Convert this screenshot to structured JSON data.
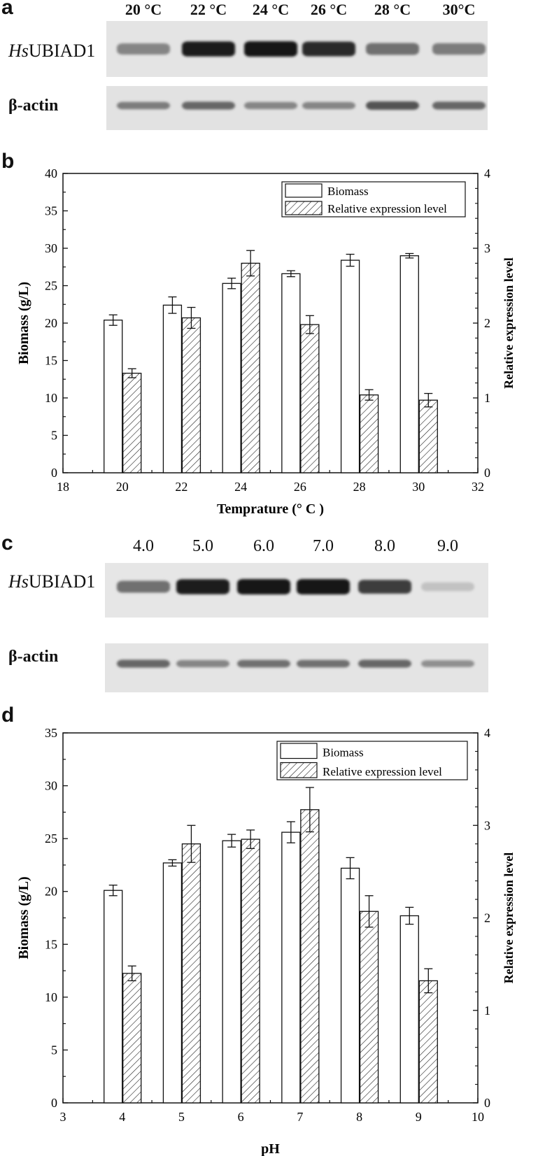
{
  "panel_a": {
    "letter": "a",
    "lanes": [
      "20 °C",
      "22 °C",
      "24 °C",
      "26 °C",
      "28 °C",
      "30°C"
    ],
    "row1_label_italic": "Hs",
    "row1_label_rest": "UBIAD1",
    "row2_label": "β-actin",
    "band_intensity_row1": [
      0.45,
      0.95,
      1.0,
      0.9,
      0.55,
      0.5
    ],
    "band_intensity_row2": [
      0.5,
      0.6,
      0.45,
      0.45,
      0.7,
      0.6
    ]
  },
  "panel_c": {
    "letter": "c",
    "lanes": [
      "4.0",
      "5.0",
      "6.0",
      "7.0",
      "8.0",
      "9.0"
    ],
    "row1_label_italic": "Hs",
    "row1_label_rest": "UBIAD1",
    "row2_label": "β-actin",
    "band_intensity_row1": [
      0.55,
      0.95,
      1.0,
      1.0,
      0.8,
      0.15
    ],
    "band_intensity_row2": [
      0.6,
      0.45,
      0.55,
      0.55,
      0.6,
      0.4
    ]
  },
  "chart_data": [
    {
      "panel": "b",
      "type": "bar",
      "xlabel": "Temprature (° C )",
      "ylabel": "Biomass (g/L)",
      "y2label": "Relative expression level",
      "xlim": [
        18,
        32
      ],
      "xticks": [
        18,
        20,
        22,
        24,
        26,
        28,
        30,
        32
      ],
      "ylim": [
        0,
        40
      ],
      "yticks": [
        0,
        5,
        10,
        15,
        20,
        25,
        30,
        35,
        40
      ],
      "y2lim": [
        0,
        4
      ],
      "y2ticks": [
        0,
        1,
        2,
        3,
        4
      ],
      "x": [
        20,
        22,
        24,
        26,
        28,
        30
      ],
      "legend_position": "top-right",
      "series": [
        {
          "name": "Biomass",
          "axis": "left",
          "values": [
            20.4,
            22.4,
            25.3,
            26.6,
            28.4,
            29.0
          ],
          "errors": [
            0.7,
            1.1,
            0.7,
            0.4,
            0.8,
            0.3
          ]
        },
        {
          "name": "Relative expression level",
          "axis": "right",
          "values": [
            1.33,
            2.07,
            2.8,
            1.98,
            1.04,
            0.97
          ],
          "errors": [
            0.06,
            0.14,
            0.17,
            0.12,
            0.07,
            0.09
          ]
        }
      ]
    },
    {
      "panel": "d",
      "type": "bar",
      "xlabel": "pH",
      "ylabel": "Biomass (g/L)",
      "y2label": "Relative expression level",
      "xlim": [
        3,
        10
      ],
      "xticks": [
        3,
        4,
        5,
        6,
        7,
        8,
        9,
        10
      ],
      "ylim": [
        0,
        35
      ],
      "yticks": [
        0,
        5,
        10,
        15,
        20,
        25,
        30,
        35
      ],
      "y2lim": [
        0,
        4
      ],
      "y2ticks": [
        0,
        1,
        2,
        3,
        4
      ],
      "x": [
        4,
        5,
        6,
        7,
        8,
        9
      ],
      "legend_position": "top-right",
      "series": [
        {
          "name": "Biomass",
          "axis": "left",
          "values": [
            20.1,
            22.7,
            24.8,
            25.6,
            22.2,
            17.7
          ],
          "errors": [
            0.5,
            0.3,
            0.6,
            1.0,
            1.0,
            0.8
          ]
        },
        {
          "name": "Relative expression level",
          "axis": "right",
          "values": [
            1.4,
            2.8,
            2.85,
            3.17,
            2.07,
            1.32
          ],
          "errors": [
            0.08,
            0.2,
            0.1,
            0.24,
            0.17,
            0.13
          ]
        }
      ]
    }
  ]
}
